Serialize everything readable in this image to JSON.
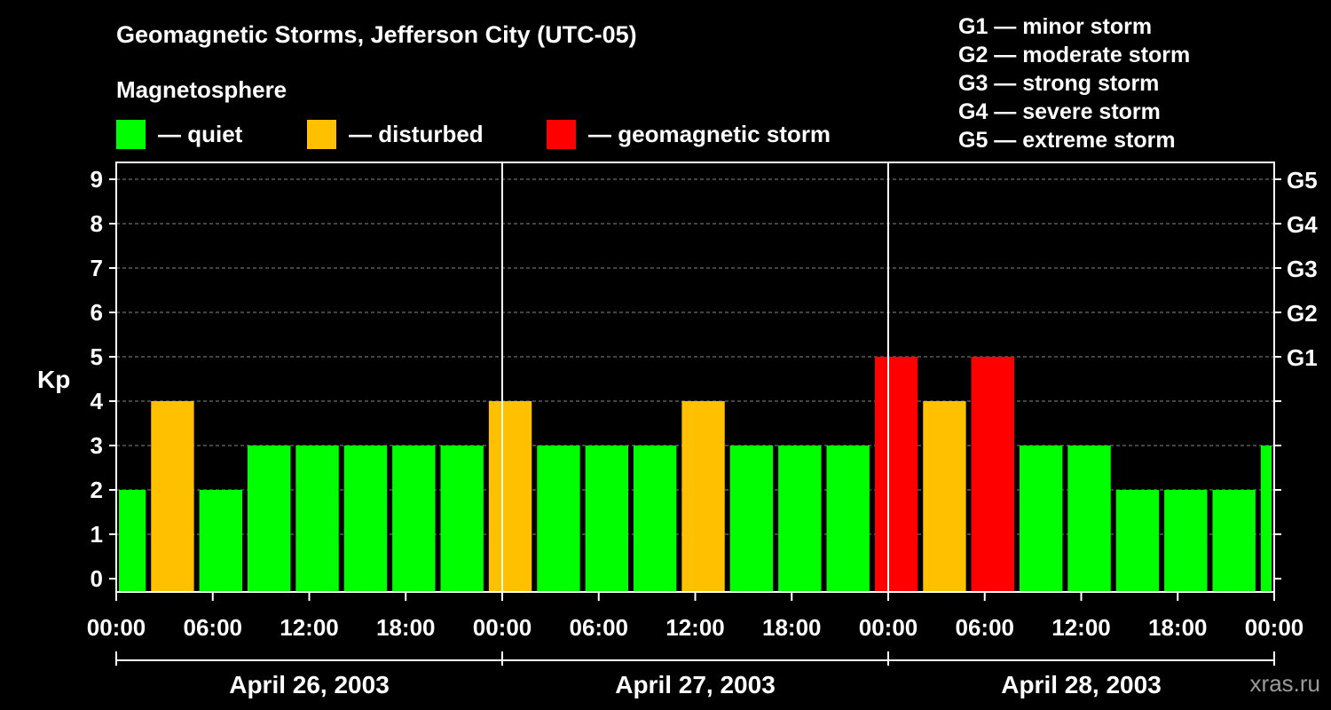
{
  "title": "Geomagnetic Storms, Jefferson City (UTC-05)",
  "subtitle": "Magnetosphere",
  "legend": [
    {
      "label": "— quiet",
      "color": "#00ff00"
    },
    {
      "label": "— disturbed",
      "color": "#ffc000"
    },
    {
      "label": "— geomagnetic storm",
      "color": "#ff0000"
    }
  ],
  "storm_scale": [
    "G1 — minor storm",
    "G2 — moderate storm",
    "G3 — strong storm",
    "G4 — severe storm",
    "G5 — extreme storm"
  ],
  "watermark": "xras.ru",
  "chart_data": {
    "type": "bar",
    "ylabel": "Kp",
    "ylim": [
      0,
      9
    ],
    "yticks": [
      "0",
      "1",
      "2",
      "3",
      "4",
      "5",
      "6",
      "7",
      "8",
      "9"
    ],
    "right_ticks": [
      {
        "kp": 5,
        "label": "G1"
      },
      {
        "kp": 6,
        "label": "G2"
      },
      {
        "kp": 7,
        "label": "G3"
      },
      {
        "kp": 8,
        "label": "G4"
      },
      {
        "kp": 9,
        "label": "G5"
      }
    ],
    "xticks": [
      "00:00",
      "06:00",
      "12:00",
      "18:00",
      "00:00",
      "06:00",
      "12:00",
      "18:00",
      "00:00",
      "06:00",
      "12:00",
      "18:00",
      "00:00"
    ],
    "days": [
      "April 26, 2003",
      "April 27, 2003",
      "April 28, 2003"
    ],
    "bin_hours": 3,
    "first_bar_start_hour": -1,
    "bars": [
      {
        "kp": 2,
        "level": "quiet"
      },
      {
        "kp": 4,
        "level": "disturbed"
      },
      {
        "kp": 2,
        "level": "quiet"
      },
      {
        "kp": 3,
        "level": "quiet"
      },
      {
        "kp": 3,
        "level": "quiet"
      },
      {
        "kp": 3,
        "level": "quiet"
      },
      {
        "kp": 3,
        "level": "quiet"
      },
      {
        "kp": 3,
        "level": "quiet"
      },
      {
        "kp": 4,
        "level": "disturbed"
      },
      {
        "kp": 3,
        "level": "quiet"
      },
      {
        "kp": 3,
        "level": "quiet"
      },
      {
        "kp": 3,
        "level": "quiet"
      },
      {
        "kp": 4,
        "level": "disturbed"
      },
      {
        "kp": 3,
        "level": "quiet"
      },
      {
        "kp": 3,
        "level": "quiet"
      },
      {
        "kp": 3,
        "level": "quiet"
      },
      {
        "kp": 5,
        "level": "storm"
      },
      {
        "kp": 4,
        "level": "disturbed"
      },
      {
        "kp": 5,
        "level": "storm"
      },
      {
        "kp": 3,
        "level": "quiet"
      },
      {
        "kp": 3,
        "level": "quiet"
      },
      {
        "kp": 2,
        "level": "quiet"
      },
      {
        "kp": 2,
        "level": "quiet"
      },
      {
        "kp": 2,
        "level": "quiet"
      },
      {
        "kp": 3,
        "level": "quiet"
      }
    ],
    "colors": {
      "quiet": "#00ff00",
      "disturbed": "#ffc000",
      "storm": "#ff0000"
    }
  }
}
